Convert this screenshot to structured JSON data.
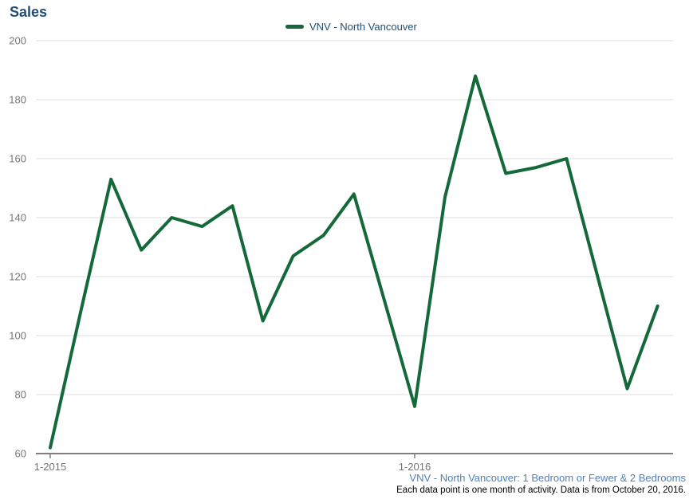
{
  "title": "Sales",
  "legend": {
    "label": "VNV - North Vancouver"
  },
  "footer": {
    "series_description": "VNV - North Vancouver: 1 Bedroom or Fewer & 2 Bedrooms",
    "note": "Each data point is one month of activity. Data is from October 20, 2016."
  },
  "colors": {
    "line": "#146938",
    "title_text": "#1f4e79",
    "legend_text": "#1f4e79",
    "footer_link": "#4f81bd",
    "footer_note": "#000000",
    "axis_labels": "#757575",
    "gridline": "#dcdcdc",
    "axis_line": "#7f7f7f"
  },
  "chart_data": {
    "type": "line",
    "title": "Sales",
    "xlabel": "",
    "ylabel": "",
    "x": [
      "1-2015",
      "2-2015",
      "3-2015",
      "4-2015",
      "5-2015",
      "6-2015",
      "7-2015",
      "8-2015",
      "9-2015",
      "10-2015",
      "11-2015",
      "12-2015",
      "1-2016",
      "2-2016",
      "3-2016",
      "4-2016",
      "5-2016",
      "6-2016",
      "7-2016",
      "8-2016",
      "9-2016"
    ],
    "x_ticks_visible": [
      "1-2015",
      "1-2016"
    ],
    "y_ticks": [
      60,
      80,
      100,
      120,
      140,
      160,
      180,
      200
    ],
    "ylim": [
      60,
      200
    ],
    "grid": "horizontal",
    "legend_position": "top",
    "series": [
      {
        "name": "VNV - North Vancouver",
        "color": "#146938",
        "values": [
          62,
          108,
          153,
          129,
          140,
          137,
          144,
          105,
          127,
          134,
          148,
          112,
          76,
          147,
          188,
          155,
          157,
          160,
          121,
          82,
          110
        ]
      }
    ]
  }
}
